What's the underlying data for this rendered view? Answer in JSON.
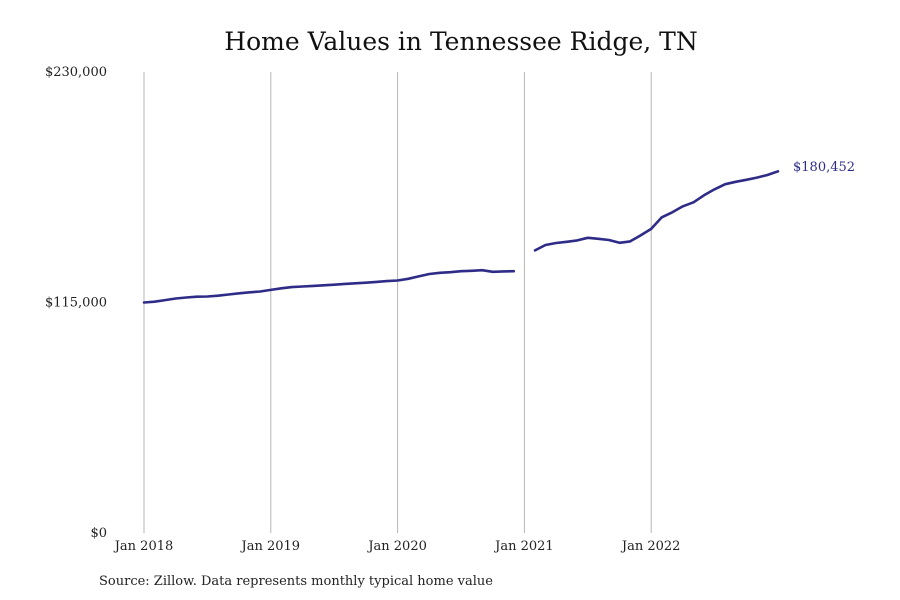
{
  "chart_data": {
    "type": "line",
    "title": "Home Values in Tennessee Ridge, TN",
    "source": "Source: Zillow. Data represents monthly typical home value",
    "xlabel": "",
    "ylabel": "",
    "x_ticks": [
      {
        "label": "Jan 2018",
        "value": "2018-01"
      },
      {
        "label": "Jan 2019",
        "value": "2019-01"
      },
      {
        "label": "Jan 2020",
        "value": "2020-01"
      },
      {
        "label": "Jan 2021",
        "value": "2021-01"
      },
      {
        "label": "Jan 2022",
        "value": "2022-01"
      }
    ],
    "y_ticks": [
      {
        "label": "$0",
        "value": 0
      },
      {
        "label": "$115,000",
        "value": 115000
      },
      {
        "label": "$230,000",
        "value": 230000
      }
    ],
    "ylim": [
      0,
      230000
    ],
    "xlim": [
      "2018-01",
      "2022-12"
    ],
    "grid": "vertical lines at January ticks",
    "color": "#2e2c86",
    "end_label": "$180,452",
    "series": [
      {
        "segments": [
          [
            {
              "x": "2018-01",
              "y": 115000
            },
            {
              "x": "2018-02",
              "y": 115400
            },
            {
              "x": "2018-03",
              "y": 116200
            },
            {
              "x": "2018-04",
              "y": 117000
            },
            {
              "x": "2018-05",
              "y": 117500
            },
            {
              "x": "2018-06",
              "y": 117900
            },
            {
              "x": "2018-07",
              "y": 118000
            },
            {
              "x": "2018-08",
              "y": 118400
            },
            {
              "x": "2018-09",
              "y": 119000
            },
            {
              "x": "2018-10",
              "y": 119600
            },
            {
              "x": "2018-11",
              "y": 120100
            },
            {
              "x": "2018-12",
              "y": 120500
            },
            {
              "x": "2019-01",
              "y": 121300
            },
            {
              "x": "2019-02",
              "y": 122100
            },
            {
              "x": "2019-03",
              "y": 122700
            },
            {
              "x": "2019-04",
              "y": 123000
            },
            {
              "x": "2019-05",
              "y": 123300
            },
            {
              "x": "2019-06",
              "y": 123600
            },
            {
              "x": "2019-07",
              "y": 123900
            },
            {
              "x": "2019-08",
              "y": 124300
            },
            {
              "x": "2019-09",
              "y": 124600
            },
            {
              "x": "2019-10",
              "y": 124900
            },
            {
              "x": "2019-11",
              "y": 125300
            },
            {
              "x": "2019-12",
              "y": 125700
            },
            {
              "x": "2020-01",
              "y": 126000
            },
            {
              "x": "2020-02",
              "y": 126800
            },
            {
              "x": "2020-03",
              "y": 128000
            },
            {
              "x": "2020-04",
              "y": 129200
            },
            {
              "x": "2020-05",
              "y": 129800
            },
            {
              "x": "2020-06",
              "y": 130100
            },
            {
              "x": "2020-07",
              "y": 130600
            },
            {
              "x": "2020-08",
              "y": 130800
            },
            {
              "x": "2020-09",
              "y": 131100
            },
            {
              "x": "2020-10",
              "y": 130300
            },
            {
              "x": "2020-11",
              "y": 130500
            },
            {
              "x": "2020-12",
              "y": 130600
            }
          ],
          [
            {
              "x": "2021-02",
              "y": 141000
            },
            {
              "x": "2021-03",
              "y": 143700
            },
            {
              "x": "2021-04",
              "y": 144700
            },
            {
              "x": "2021-05",
              "y": 145300
            },
            {
              "x": "2021-06",
              "y": 146000
            },
            {
              "x": "2021-07",
              "y": 147300
            },
            {
              "x": "2021-08",
              "y": 146800
            },
            {
              "x": "2021-09",
              "y": 146200
            },
            {
              "x": "2021-10",
              "y": 144800
            },
            {
              "x": "2021-11",
              "y": 145500
            },
            {
              "x": "2021-12",
              "y": 148500
            },
            {
              "x": "2022-01",
              "y": 151700
            },
            {
              "x": "2022-02",
              "y": 157500
            },
            {
              "x": "2022-03",
              "y": 160000
            },
            {
              "x": "2022-04",
              "y": 163000
            },
            {
              "x": "2022-05",
              "y": 165000
            },
            {
              "x": "2022-06",
              "y": 168500
            },
            {
              "x": "2022-07",
              "y": 171500
            },
            {
              "x": "2022-08",
              "y": 174000
            },
            {
              "x": "2022-09",
              "y": 175200
            },
            {
              "x": "2022-10",
              "y": 176200
            },
            {
              "x": "2022-11",
              "y": 177300
            },
            {
              "x": "2022-12",
              "y": 178600
            },
            {
              "x": "2023-01",
              "y": 180452
            }
          ]
        ]
      }
    ]
  }
}
